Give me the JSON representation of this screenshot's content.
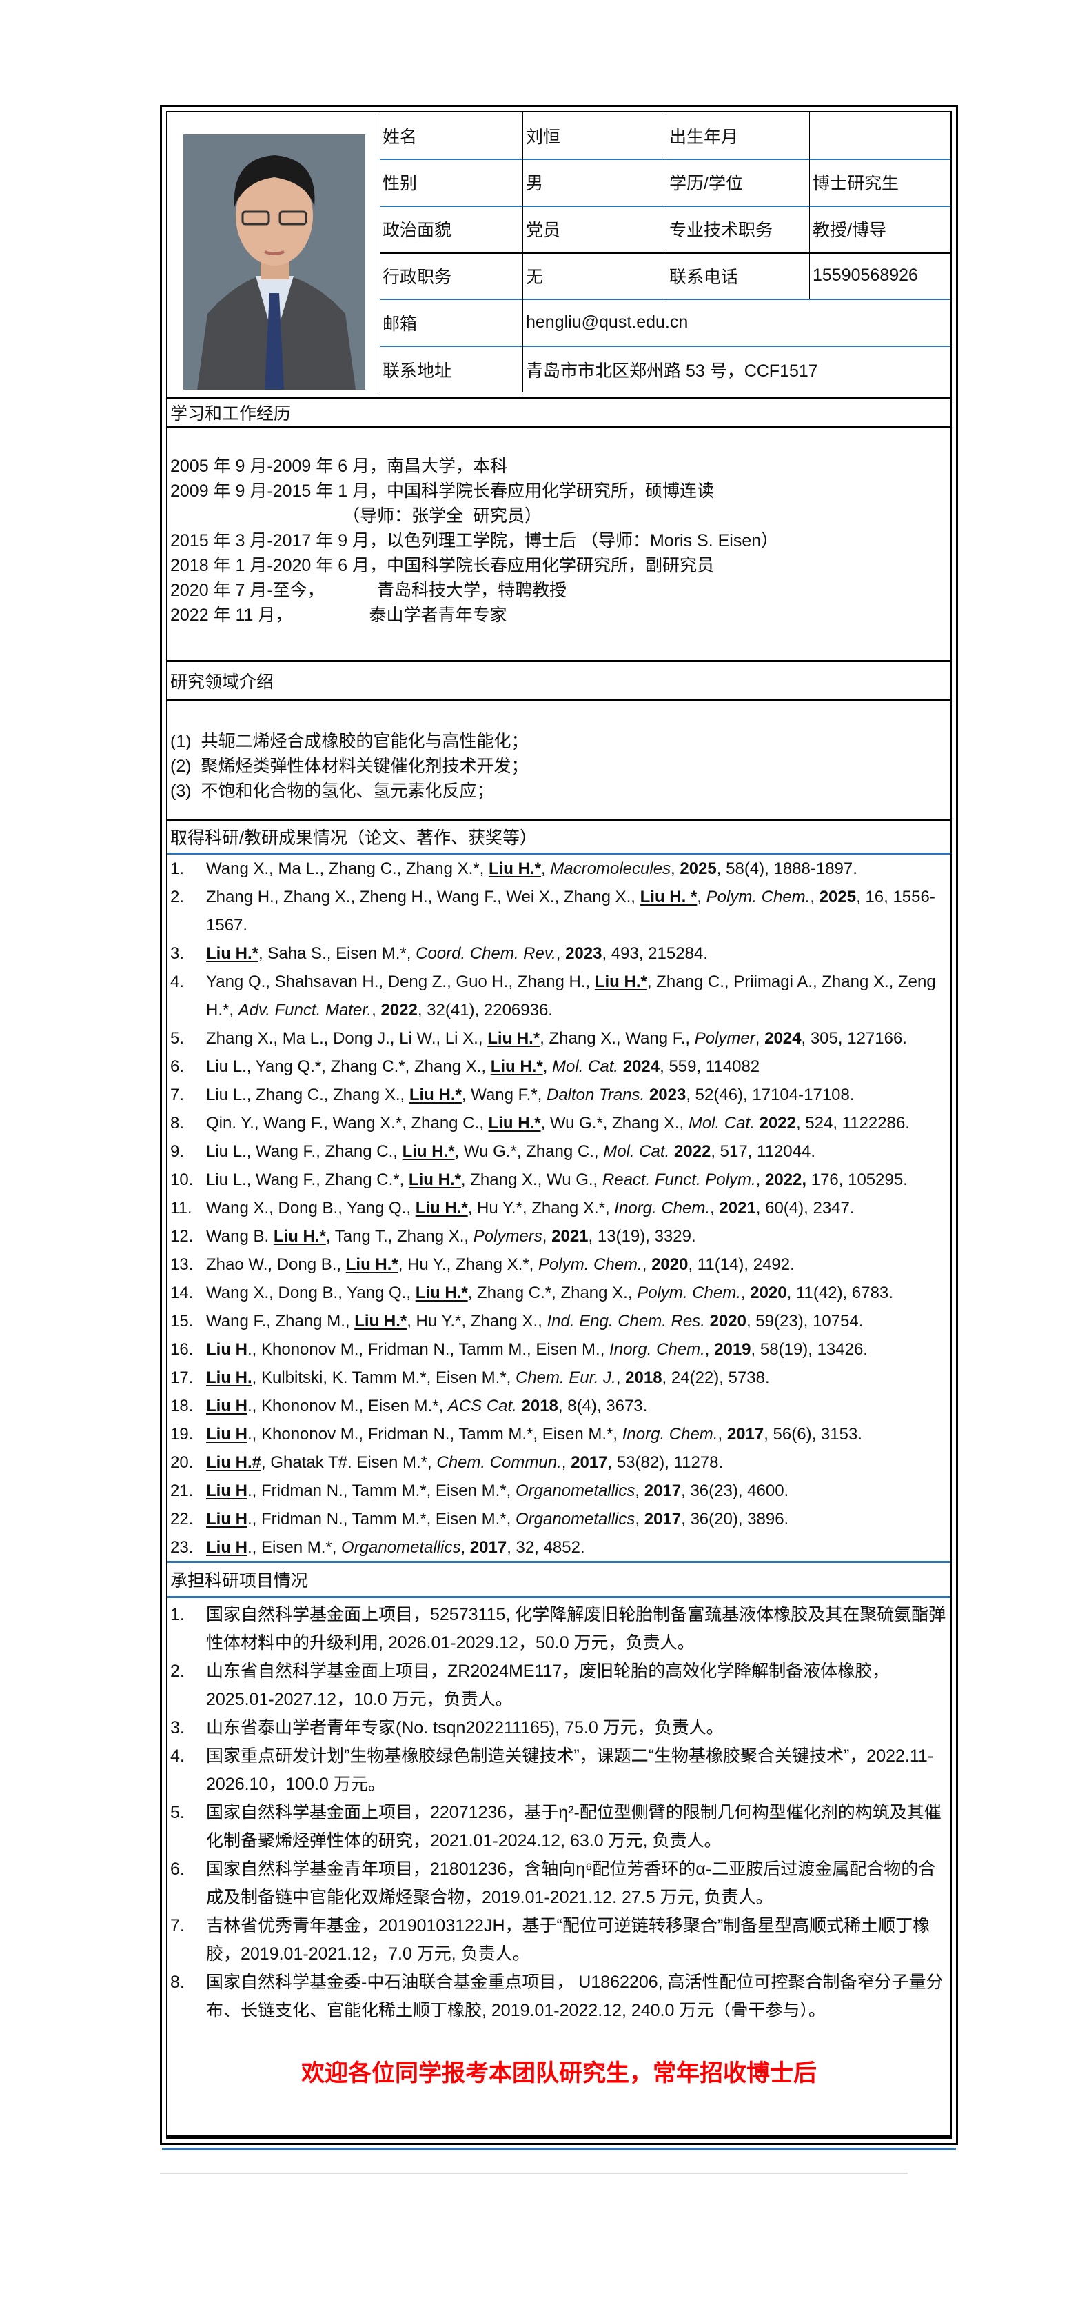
{
  "profile": {
    "rows": [
      [
        {
          "label": "姓名"
        },
        {
          "value": "刘恒"
        },
        {
          "label": "出生年月"
        },
        {
          "value": ""
        }
      ],
      [
        {
          "label": "性别"
        },
        {
          "value": "男"
        },
        {
          "label": "学历/学位"
        },
        {
          "value": "博士研究生"
        }
      ],
      [
        {
          "label": "政治面貌"
        },
        {
          "value": "党员"
        },
        {
          "label": "专业技术职务"
        },
        {
          "value": "教授/博导"
        }
      ],
      [
        {
          "label": "行政职务"
        },
        {
          "value": "无"
        },
        {
          "label": "联系电话"
        },
        {
          "value": "15590568926"
        }
      ],
      [
        {
          "label": "邮箱"
        },
        {
          "value": "hengliu@qust.edu.cn"
        }
      ],
      [
        {
          "label": "联系地址"
        },
        {
          "value": "青岛市市北区郑州路 53 号，CCF1517"
        }
      ]
    ]
  },
  "education": {
    "title": "学习和工作经历",
    "lines": [
      "2005 年 9 月-2009 年 6 月，南昌大学，本科",
      "2009 年 9 月-2015 年 1 月，中国科学院长春应用化学研究所，硕博连读",
      "                                    （导师：张学全  研究员）",
      "2015 年 3 月-2017 年 9 月，以色列理工学院，博士后 （导师：Moris S. Eisen）",
      "2018 年 1 月-2020 年 6 月，中国科学院长春应用化学研究所，副研究员",
      "2020 年 7 月-至今，           青岛科技大学，特聘教授",
      "2022 年 11 月，                泰山学者青年专家"
    ]
  },
  "research": {
    "title": "研究领域介绍",
    "lines": [
      "(1)  共轭二烯烃合成橡胶的官能化与高性能化；",
      "(2)  聚烯烃类弹性体材料关键催化剂技术开发；",
      "(3)  不饱和化合物的氢化、氢元素化反应；"
    ]
  },
  "publications": {
    "title": "取得科研/教研成果情况（论文、著作、获奖等）",
    "items": [
      {
        "num": "1.",
        "parts": [
          {
            "t": "Wang X., Ma L., Zhang C., Zhang X.*, "
          },
          {
            "t": "Liu H.*",
            "s": "b u"
          },
          {
            "t": ", "
          },
          {
            "t": "Macromolecules",
            "s": "i"
          },
          {
            "t": ", "
          },
          {
            "t": "2025",
            "s": "b"
          },
          {
            "t": ", 58(4), 1888-1897."
          }
        ]
      },
      {
        "num": "2.",
        "parts": [
          {
            "t": "Zhang H., Zhang X., Zheng H., Wang F., Wei X., Zhang X., "
          },
          {
            "t": "Liu H. *",
            "s": "b u"
          },
          {
            "t": ", "
          },
          {
            "t": "Polym. Chem.",
            "s": "i"
          },
          {
            "t": ", "
          },
          {
            "t": "2025",
            "s": "b"
          },
          {
            "t": ", 16, 1556-1567."
          }
        ]
      },
      {
        "num": "3.",
        "parts": [
          {
            "t": "Liu H.*",
            "s": "b u"
          },
          {
            "t": ", Saha S., Eisen M.*, "
          },
          {
            "t": "Coord. Chem. Rev.",
            "s": "i"
          },
          {
            "t": ", "
          },
          {
            "t": "2023",
            "s": "b"
          },
          {
            "t": ", 493, 215284."
          }
        ]
      },
      {
        "num": "4.",
        "parts": [
          {
            "t": "Yang Q., Shahsavan H., Deng Z., Guo H., Zhang H., "
          },
          {
            "t": "Liu H.*",
            "s": "b u"
          },
          {
            "t": ", Zhang C., Priimagi A., Zhang X., Zeng H.*, "
          },
          {
            "t": "Adv. Funct. Mater.",
            "s": "i"
          },
          {
            "t": ", "
          },
          {
            "t": "2022",
            "s": "b"
          },
          {
            "t": ", 32(41), 2206936."
          }
        ]
      },
      {
        "num": "5.",
        "parts": [
          {
            "t": "Zhang X., Ma L., Dong J., Li W., Li X., "
          },
          {
            "t": "Liu H.*",
            "s": "b u"
          },
          {
            "t": ", Zhang X., Wang F., "
          },
          {
            "t": "Polymer",
            "s": "i"
          },
          {
            "t": ", "
          },
          {
            "t": "2024",
            "s": "b"
          },
          {
            "t": ", 305, 127166."
          }
        ]
      },
      {
        "num": "6.",
        "parts": [
          {
            "t": "Liu L., Yang Q.*, Zhang C.*, Zhang X., "
          },
          {
            "t": "Liu H.*",
            "s": "b u"
          },
          {
            "t": ", "
          },
          {
            "t": "Mol. Cat.",
            "s": "i"
          },
          {
            "t": " "
          },
          {
            "t": "2024",
            "s": "b"
          },
          {
            "t": ", 559, 114082"
          }
        ]
      },
      {
        "num": "7.",
        "parts": [
          {
            "t": "Liu L., Zhang C., Zhang X., "
          },
          {
            "t": "Liu H.*",
            "s": "b u"
          },
          {
            "t": ", Wang F.*, "
          },
          {
            "t": "Dalton Trans.",
            "s": "i"
          },
          {
            "t": " "
          },
          {
            "t": "2023",
            "s": "b"
          },
          {
            "t": ", 52(46), 17104-17108."
          }
        ]
      },
      {
        "num": "8.",
        "parts": [
          {
            "t": "Qin. Y., Wang F., Wang X.*, Zhang C., "
          },
          {
            "t": "Liu H.*",
            "s": "b u"
          },
          {
            "t": ", Wu G.*, Zhang X., "
          },
          {
            "t": "Mol. Cat.",
            "s": "i"
          },
          {
            "t": " "
          },
          {
            "t": "2022",
            "s": "b"
          },
          {
            "t": ", 524, 1122286."
          }
        ]
      },
      {
        "num": "9.",
        "parts": [
          {
            "t": "Liu L., Wang F., Zhang C., "
          },
          {
            "t": "Liu H.*",
            "s": "b u"
          },
          {
            "t": ", Wu G.*, Zhang C., "
          },
          {
            "t": "Mol. Cat.",
            "s": "i"
          },
          {
            "t": " "
          },
          {
            "t": "2022",
            "s": "b"
          },
          {
            "t": ", 517, 112044."
          }
        ]
      },
      {
        "num": "10.",
        "parts": [
          {
            "t": "Liu L., Wang F., Zhang C.*, "
          },
          {
            "t": "Liu H.*",
            "s": "b u"
          },
          {
            "t": ", Zhang X., Wu G., "
          },
          {
            "t": "React. Funct. Polym.",
            "s": "i"
          },
          {
            "t": ", "
          },
          {
            "t": "2022,",
            "s": "b"
          },
          {
            "t": " 176, 105295."
          }
        ]
      },
      {
        "num": "11.",
        "parts": [
          {
            "t": "Wang X., Dong B., Yang Q., "
          },
          {
            "t": "Liu H.*",
            "s": "b u"
          },
          {
            "t": ", Hu Y.*, Zhang X.*, "
          },
          {
            "t": "Inorg. Chem.",
            "s": "i"
          },
          {
            "t": ", "
          },
          {
            "t": "2021",
            "s": "b"
          },
          {
            "t": ", 60(4), 2347."
          }
        ]
      },
      {
        "num": "12.",
        "parts": [
          {
            "t": "Wang B. "
          },
          {
            "t": "Liu H.*",
            "s": "b u"
          },
          {
            "t": ", Tang T., Zhang X., "
          },
          {
            "t": "Polymers",
            "s": "i"
          },
          {
            "t": ", "
          },
          {
            "t": "2021",
            "s": "b"
          },
          {
            "t": ", 13(19), 3329."
          }
        ]
      },
      {
        "num": "13.",
        "parts": [
          {
            "t": "Zhao W., Dong B., "
          },
          {
            "t": "Liu H.*",
            "s": "b u"
          },
          {
            "t": ", Hu Y., Zhang X.*, "
          },
          {
            "t": "Polym. Chem.",
            "s": "i"
          },
          {
            "t": ", "
          },
          {
            "t": "2020",
            "s": "b"
          },
          {
            "t": ", 11(14), 2492."
          }
        ]
      },
      {
        "num": "14.",
        "parts": [
          {
            "t": "Wang X., Dong B., Yang Q., "
          },
          {
            "t": "Liu H.*",
            "s": "b u"
          },
          {
            "t": ", Zhang C.*, Zhang X., "
          },
          {
            "t": "Polym. Chem.",
            "s": "i"
          },
          {
            "t": ", "
          },
          {
            "t": "2020",
            "s": "b"
          },
          {
            "t": ", 11(42), 6783."
          }
        ]
      },
      {
        "num": "15.",
        "parts": [
          {
            "t": "Wang F., Zhang M., "
          },
          {
            "t": "Liu H.*",
            "s": "b u"
          },
          {
            "t": ", Hu Y.*, Zhang X., "
          },
          {
            "t": "Ind. Eng. Chem. Res.",
            "s": "i"
          },
          {
            "t": " "
          },
          {
            "t": "2020",
            "s": "b"
          },
          {
            "t": ", 59(23), 10754."
          }
        ]
      },
      {
        "num": "16.",
        "parts": [
          {
            "t": "Liu H",
            "s": "b"
          },
          {
            "t": "., Khononov M., Fridman N., Tamm M., Eisen M., "
          },
          {
            "t": "Inorg. Chem.",
            "s": "i"
          },
          {
            "t": ", "
          },
          {
            "t": "2019",
            "s": "b"
          },
          {
            "t": ", 58(19), 13426."
          }
        ]
      },
      {
        "num": "17.",
        "parts": [
          {
            "t": "Liu H.",
            "s": "b u"
          },
          {
            "t": ", Kulbitski, K. Tamm M.*, Eisen M.*, "
          },
          {
            "t": "Chem. Eur. J.",
            "s": "i"
          },
          {
            "t": ", "
          },
          {
            "t": "2018",
            "s": "b"
          },
          {
            "t": ", 24(22), 5738."
          }
        ]
      },
      {
        "num": "18.",
        "parts": [
          {
            "t": "Liu H",
            "s": "b u"
          },
          {
            "t": "., Khononov M., Eisen M.*, "
          },
          {
            "t": "ACS Cat.",
            "s": "i"
          },
          {
            "t": " "
          },
          {
            "t": "2018",
            "s": "b"
          },
          {
            "t": ", 8(4), 3673."
          }
        ]
      },
      {
        "num": "19.",
        "parts": [
          {
            "t": "Liu H",
            "s": "b u"
          },
          {
            "t": "., Khononov M., Fridman N., Tamm M.*, Eisen M.*, "
          },
          {
            "t": "Inorg. Chem.",
            "s": "i"
          },
          {
            "t": ", "
          },
          {
            "t": "2017",
            "s": "b"
          },
          {
            "t": ", 56(6), 3153."
          }
        ]
      },
      {
        "num": "20.",
        "parts": [
          {
            "t": "Liu H.#",
            "s": "b u"
          },
          {
            "t": ", Ghatak T#. Eisen M.*, "
          },
          {
            "t": "Chem. Commun.",
            "s": "i"
          },
          {
            "t": ", "
          },
          {
            "t": "2017",
            "s": "b"
          },
          {
            "t": ", 53(82), 11278."
          }
        ]
      },
      {
        "num": "21.",
        "parts": [
          {
            "t": "Liu H",
            "s": "b u"
          },
          {
            "t": "., Fridman N., Tamm M.*, Eisen M.*, "
          },
          {
            "t": "Organometallics",
            "s": "i"
          },
          {
            "t": ", "
          },
          {
            "t": "2017",
            "s": "b"
          },
          {
            "t": ", 36(23), 4600."
          }
        ]
      },
      {
        "num": "22.",
        "parts": [
          {
            "t": "Liu H",
            "s": "b u"
          },
          {
            "t": "., Fridman N., Tamm M.*, Eisen M.*, "
          },
          {
            "t": "Organometallics",
            "s": "i"
          },
          {
            "t": ", "
          },
          {
            "t": "2017",
            "s": "b"
          },
          {
            "t": ", 36(20), 3896."
          }
        ]
      },
      {
        "num": "23.",
        "parts": [
          {
            "t": "Liu H",
            "s": "b u"
          },
          {
            "t": "., Eisen M.*, "
          },
          {
            "t": "Organometallics",
            "s": "i"
          },
          {
            "t": ", "
          },
          {
            "t": "2017",
            "s": "b"
          },
          {
            "t": ", 32, 4852."
          }
        ]
      }
    ]
  },
  "projects": {
    "title": "承担科研项目情况",
    "items": [
      {
        "num": "1.",
        "text": "国家自然科学基金面上项目，52573115, 化学降解废旧轮胎制备富巯基液体橡胶及其在聚硫氨酯弹性体材料中的升级利用, 2026.01-2029.12，50.0  万元，负责人。"
      },
      {
        "num": "2.",
        "text": "山东省自然科学基金面上项目，ZR2024ME117，废旧轮胎的高效化学降解制备液体橡胶，2025.01-2027.12，10.0 万元，负责人。"
      },
      {
        "num": "3.",
        "text": "山东省泰山学者青年专家(No. tsqn202211165), 75.0 万元，负责人。"
      },
      {
        "num": "4.",
        "text": "国家重点研发计划”生物基橡胶绿色制造关键技术”，课题二“生物基橡胶聚合关键技术”，2022.11-2026.10，100.0 万元。"
      },
      {
        "num": "5.",
        "text": "国家自然科学基金面上项目，22071236，基于η²-配位型侧臂的限制几何构型催化剂的构筑及其催化制备聚烯烃弹性体的研究，2021.01-2024.12, 63.0 万元, 负责人。"
      },
      {
        "num": "6.",
        "text": "国家自然科学基金青年项目，21801236，含轴向η⁶配位芳香环的α-二亚胺后过渡金属配合物的合成及制备链中官能化双烯烃聚合物，2019.01-2021.12. 27.5 万元, 负责人。"
      },
      {
        "num": "7.",
        "text": "吉林省优秀青年基金，20190103122JH，基于“配位可逆链转移聚合”制备星型高顺式稀土顺丁橡胶，2019.01-2021.12，7.0 万元, 负责人。"
      },
      {
        "num": "8.",
        "text": "国家自然科学基金委-中石油联合基金重点项目， U1862206, 高活性配位可控聚合制备窄分子量分布、长链支化、官能化稀土顺丁橡胶, 2019.01-2022.12, 240.0 万元（骨干参与）。"
      }
    ]
  },
  "recruit": "欢迎各位同学报考本团队研究生，常年招收博士后",
  "colors": {
    "rule_blue": "#2e75b6",
    "recruit_red": "#ff0000"
  }
}
